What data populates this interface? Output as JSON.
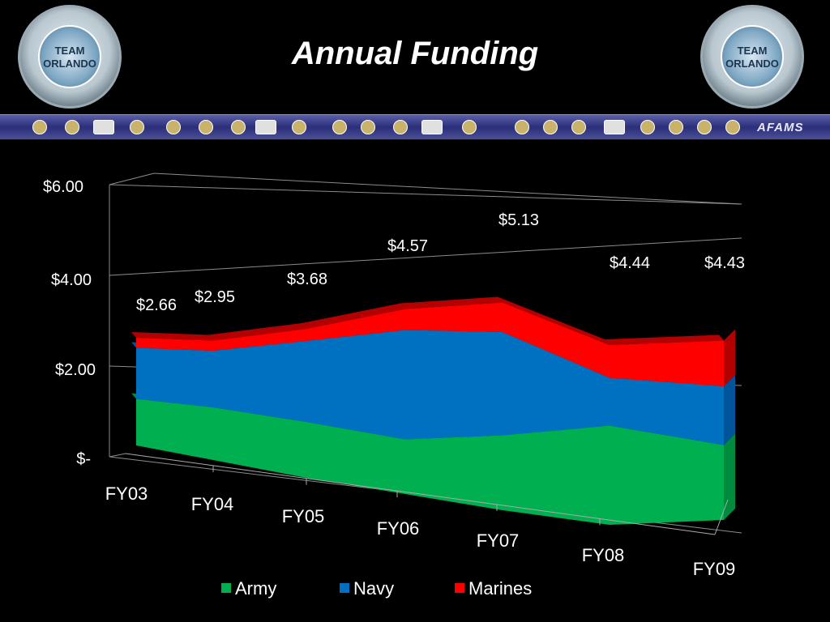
{
  "header": {
    "title": "Annual Funding",
    "seal_text": [
      "TEAM",
      "ORLANDO"
    ],
    "logo_text": "AFAMS"
  },
  "chart_data": {
    "type": "area",
    "title": "Annual Funding",
    "categories": [
      "FY03",
      "FY04",
      "FY05",
      "FY06",
      "FY07",
      "FY08",
      "FY09"
    ],
    "series": [
      {
        "name": "Army",
        "color": "#00B050",
        "values": [
          1.15,
          1.3,
          1.38,
          1.35,
          1.85,
          2.45,
          1.85
        ]
      },
      {
        "name": "Navy",
        "color": "#0070C0",
        "values": [
          1.26,
          1.4,
          2.0,
          2.7,
          2.55,
          1.18,
          1.45
        ]
      },
      {
        "name": "Marines",
        "color": "#FF0000",
        "values": [
          0.25,
          0.25,
          0.3,
          0.52,
          0.73,
          0.81,
          1.13
        ]
      }
    ],
    "totals": [
      2.66,
      2.95,
      3.68,
      4.57,
      5.13,
      4.44,
      4.43
    ],
    "total_labels": [
      "$2.66",
      "$2.95",
      "$3.68",
      "$4.57",
      "$5.13",
      "$4.44",
      "$4.43"
    ],
    "y_ticks": [
      0,
      2,
      4,
      6
    ],
    "y_tick_labels": [
      "$-",
      "$2.00",
      "$4.00",
      "$6.00"
    ],
    "ylim": [
      0,
      6
    ],
    "grid": true,
    "legend": "bottom",
    "view": "3d-perspective"
  }
}
